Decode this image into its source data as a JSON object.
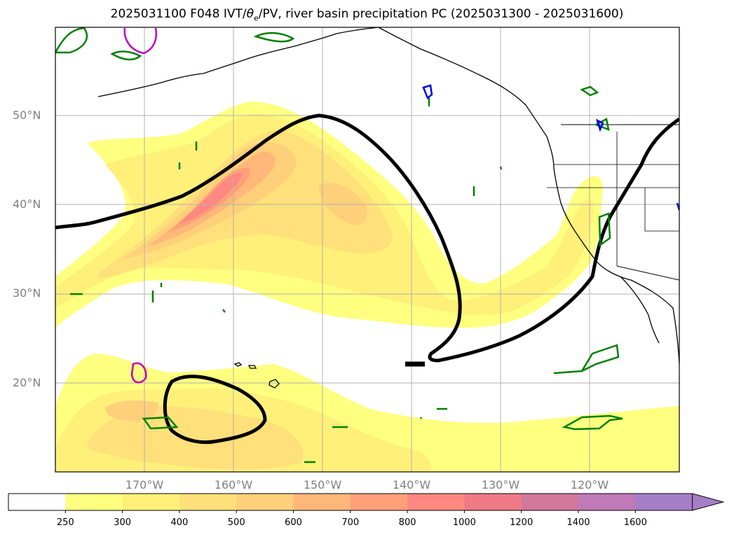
{
  "title": {
    "prefix": "2025031100 F048 IVT/",
    "theta": "θ",
    "theta_sub": "e",
    "suffix": "/PV, river basin precipitation PC (2025031300 - 2025031600)"
  },
  "lat_labels": [
    "50°N",
    "40°N",
    "30°N",
    "20°N"
  ],
  "lon_labels": [
    "170°W",
    "160°W",
    "150°W",
    "140°W",
    "130°W",
    "120°W"
  ],
  "colorbar": {
    "labels": [
      "250",
      "300",
      "400",
      "500",
      "600",
      "700",
      "800",
      "1000",
      "1200",
      "1400",
      "1600"
    ],
    "colors": [
      "#ffffff",
      "#ffff80",
      "#fff07a",
      "#ffe07a",
      "#ffd07a",
      "#ffb77a",
      "#ffa07a",
      "#ff8880",
      "#ee7a85",
      "#d2789a",
      "#c07ab8",
      "#a67ec6"
    ],
    "extend": "max"
  },
  "colors": {
    "ivt_theme": "#ffff80",
    "contour_black": "#000000",
    "contour_green": "#008000",
    "contour_magenta": "#c000c0",
    "contour_blue": "#0000ee",
    "grid": "#b0b0b0",
    "coast": "#000000"
  }
}
